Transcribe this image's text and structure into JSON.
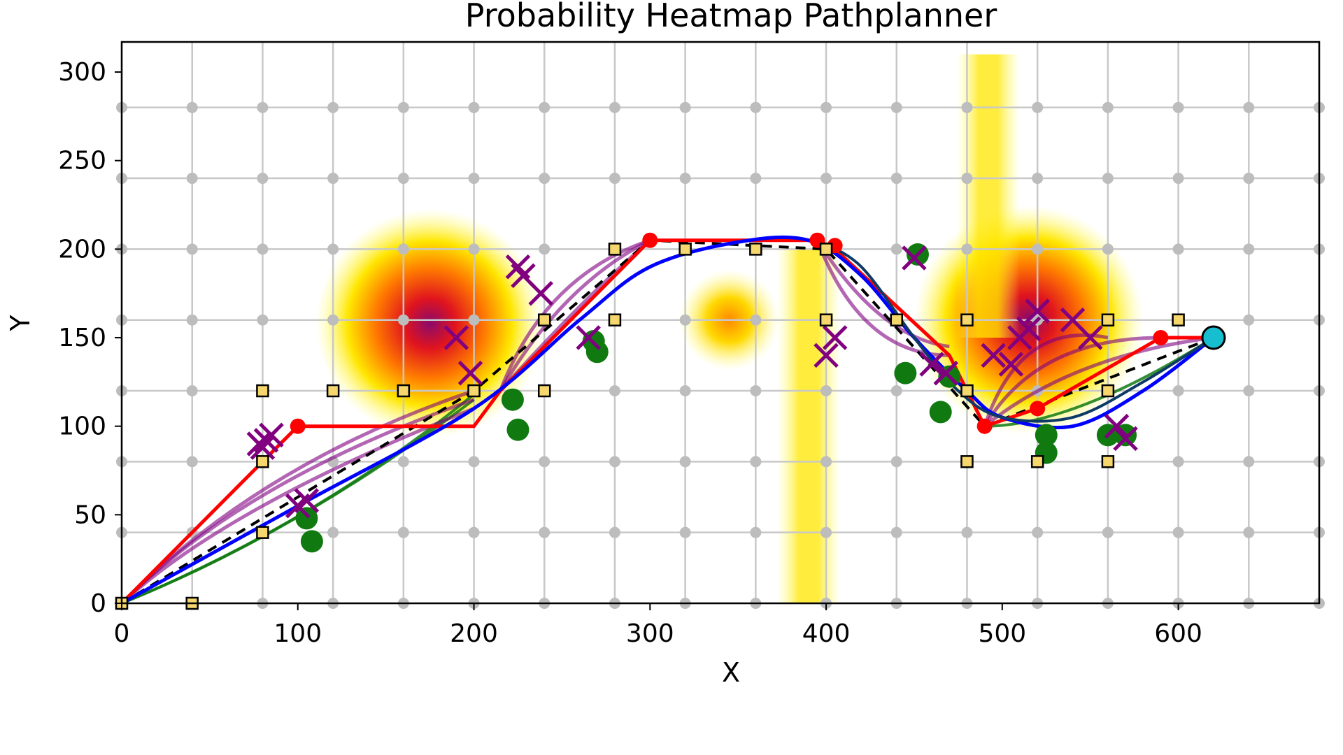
{
  "chart_data": {
    "type": "scatter",
    "title": "Probability Heatmap Pathplanner",
    "xlabel": "X",
    "ylabel": "Y",
    "xlim": [
      0,
      680
    ],
    "ylim": [
      0,
      317
    ],
    "xticks": [
      0,
      100,
      200,
      300,
      400,
      500,
      600
    ],
    "yticks": [
      0,
      50,
      100,
      150,
      200,
      250,
      300
    ],
    "grid": true,
    "grid_points": {
      "x_step": 40,
      "y_step": 40
    },
    "heat_sources": [
      {
        "x": 175,
        "y": 158,
        "peak": 1.0,
        "radius": 50
      },
      {
        "x": 345,
        "y": 160,
        "peak": 0.5,
        "radius": 22
      },
      {
        "x": 515,
        "y": 160,
        "peak": 1.0,
        "radius": 50
      },
      {
        "x": 390,
        "y": 100,
        "width": 18,
        "height": 200,
        "peak": 0.45,
        "kind": "band"
      },
      {
        "x": 492,
        "y": 230,
        "width": 18,
        "height": 160,
        "peak": 0.45,
        "kind": "band"
      }
    ],
    "waypoints": [
      [
        0,
        0
      ],
      [
        40,
        0
      ],
      [
        80,
        40
      ],
      [
        80,
        80
      ],
      [
        80,
        120
      ],
      [
        120,
        120
      ],
      [
        160,
        120
      ],
      [
        200,
        120
      ],
      [
        240,
        120
      ],
      [
        240,
        160
      ],
      [
        280,
        160
      ],
      [
        280,
        200
      ],
      [
        320,
        200
      ],
      [
        360,
        200
      ],
      [
        400,
        200
      ],
      [
        400,
        160
      ],
      [
        440,
        160
      ],
      [
        480,
        160
      ],
      [
        480,
        120
      ],
      [
        480,
        80
      ],
      [
        520,
        80
      ],
      [
        560,
        80
      ],
      [
        560,
        120
      ],
      [
        560,
        160
      ],
      [
        600,
        160
      ]
    ],
    "path_red": [
      [
        0,
        0
      ],
      [
        80,
        80
      ],
      [
        100,
        100
      ],
      [
        200,
        100
      ],
      [
        215,
        120
      ],
      [
        300,
        205
      ],
      [
        395,
        205
      ],
      [
        405,
        200
      ],
      [
        470,
        140
      ],
      [
        490,
        100
      ],
      [
        520,
        110
      ],
      [
        590,
        150
      ],
      [
        620,
        150
      ]
    ],
    "path_blue": [
      [
        0,
        0
      ],
      [
        100,
        55
      ],
      [
        200,
        110
      ],
      [
        260,
        160
      ],
      [
        300,
        190
      ],
      [
        350,
        204
      ],
      [
        390,
        205
      ],
      [
        420,
        185
      ],
      [
        450,
        150
      ],
      [
        480,
        120
      ],
      [
        500,
        105
      ],
      [
        540,
        100
      ],
      [
        580,
        120
      ],
      [
        620,
        150
      ]
    ],
    "path_navy": [
      [
        395,
        205
      ],
      [
        420,
        190
      ],
      [
        450,
        150
      ],
      [
        475,
        120
      ],
      [
        500,
        105
      ],
      [
        540,
        105
      ],
      [
        580,
        125
      ],
      [
        620,
        150
      ]
    ],
    "path_dashed": [
      [
        0,
        0
      ],
      [
        200,
        120
      ],
      [
        300,
        205
      ],
      [
        400,
        200
      ],
      [
        490,
        100
      ],
      [
        620,
        150
      ]
    ],
    "purple_curves": [
      [
        [
          0,
          0
        ],
        [
          60,
          55
        ],
        [
          200,
          110
        ]
      ],
      [
        [
          0,
          0
        ],
        [
          70,
          70
        ],
        [
          200,
          115
        ]
      ],
      [
        [
          0,
          0
        ],
        [
          80,
          80
        ],
        [
          200,
          120
        ]
      ],
      [
        [
          215,
          120
        ],
        [
          240,
          185
        ],
        [
          300,
          205
        ]
      ],
      [
        [
          215,
          120
        ],
        [
          250,
          180
        ],
        [
          300,
          205
        ]
      ],
      [
        [
          215,
          120
        ],
        [
          260,
          170
        ],
        [
          300,
          205
        ]
      ],
      [
        [
          395,
          205
        ],
        [
          420,
          140
        ],
        [
          470,
          140
        ]
      ],
      [
        [
          395,
          205
        ],
        [
          430,
          150
        ],
        [
          470,
          145
        ]
      ],
      [
        [
          490,
          100
        ],
        [
          510,
          160
        ],
        [
          560,
          150
        ]
      ],
      [
        [
          490,
          100
        ],
        [
          520,
          150
        ],
        [
          590,
          150
        ]
      ],
      [
        [
          490,
          100
        ],
        [
          540,
          140
        ],
        [
          620,
          150
        ]
      ]
    ],
    "green_curves": [
      [
        [
          0,
          0
        ],
        [
          100,
          40
        ],
        [
          200,
          115
        ]
      ],
      [
        [
          0,
          0
        ],
        [
          110,
          45
        ],
        [
          200,
          118
        ]
      ],
      [
        [
          490,
          100
        ],
        [
          540,
          100
        ],
        [
          620,
          150
        ]
      ]
    ],
    "red_dots": [
      [
        100,
        100
      ],
      [
        300,
        205
      ],
      [
        395,
        205
      ],
      [
        405,
        202
      ],
      [
        490,
        100
      ],
      [
        520,
        110
      ],
      [
        590,
        150
      ]
    ],
    "green_blobs": [
      [
        105,
        48
      ],
      [
        108,
        35
      ],
      [
        222,
        115
      ],
      [
        225,
        98
      ],
      [
        268,
        148
      ],
      [
        270,
        142
      ],
      [
        452,
        197
      ],
      [
        445,
        130
      ],
      [
        465,
        108
      ],
      [
        525,
        85
      ],
      [
        525,
        95
      ],
      [
        560,
        95
      ],
      [
        570,
        95
      ],
      [
        470,
        128
      ]
    ],
    "purple_crosses": [
      [
        78,
        90
      ],
      [
        82,
        92
      ],
      [
        85,
        95
      ],
      [
        80,
        88
      ],
      [
        225,
        190
      ],
      [
        228,
        185
      ],
      [
        238,
        175
      ],
      [
        190,
        150
      ],
      [
        198,
        130
      ],
      [
        265,
        150
      ],
      [
        400,
        140
      ],
      [
        405,
        150
      ],
      [
        450,
        195
      ],
      [
        460,
        135
      ],
      [
        468,
        130
      ],
      [
        495,
        140
      ],
      [
        505,
        135
      ],
      [
        515,
        155
      ],
      [
        520,
        165
      ],
      [
        510,
        150
      ],
      [
        540,
        160
      ],
      [
        550,
        150
      ],
      [
        565,
        100
      ],
      [
        570,
        93
      ],
      [
        100,
        55
      ],
      [
        105,
        58
      ]
    ],
    "goal": {
      "x": 620,
      "y": 150
    }
  },
  "colors": {
    "red_path": "#ff0000",
    "blue_path": "#0000ff",
    "navy_path": "#0d3b66",
    "purple": "#800080",
    "green": "#107a10",
    "waypoint_fill": "#f5d76e",
    "goal_fill": "#17becf",
    "grid": "#c8c8c8"
  }
}
